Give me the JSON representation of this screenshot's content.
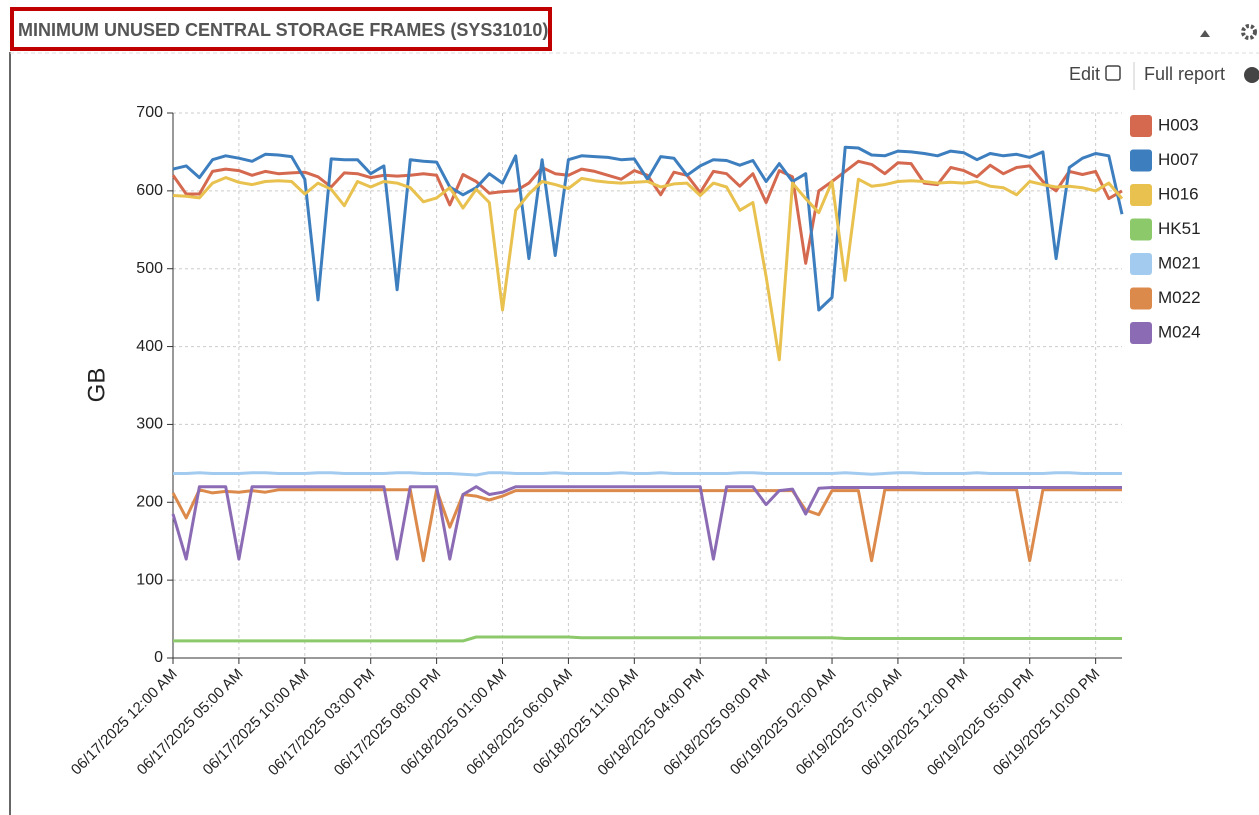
{
  "panel": {
    "title": "MINIMUM UNUSED CENTRAL STORAGE FRAMES (SYS31010)",
    "edit": "Edit",
    "full_report": "Full report"
  },
  "chart_data": {
    "type": "line",
    "ylabel": "GB",
    "ylim": [
      0,
      700
    ],
    "yticks": [
      0,
      100,
      200,
      300,
      400,
      500,
      600,
      700
    ],
    "grid": true,
    "legend": "right",
    "categories": [
      "06/17/2025 12:00 AM",
      null,
      null,
      null,
      null,
      "06/17/2025 05:00 AM",
      null,
      null,
      null,
      null,
      "06/17/2025 10:00 AM",
      null,
      null,
      null,
      null,
      "06/17/2025 03:00 PM",
      null,
      null,
      null,
      null,
      "06/17/2025 08:00 PM",
      null,
      null,
      null,
      null,
      "06/18/2025 01:00 AM",
      null,
      null,
      null,
      null,
      "06/18/2025 06:00 AM",
      null,
      null,
      null,
      null,
      "06/18/2025 11:00 AM",
      null,
      null,
      null,
      null,
      "06/18/2025 04:00 PM",
      null,
      null,
      null,
      null,
      "06/18/2025 09:00 PM",
      null,
      null,
      null,
      null,
      "06/19/2025 02:00 AM",
      null,
      null,
      null,
      null,
      "06/19/2025 07:00 AM",
      null,
      null,
      null,
      null,
      "06/19/2025 12:00 PM",
      null,
      null,
      null,
      null,
      "06/19/2025 05:00 PM",
      null,
      null,
      null,
      null,
      "06/19/2025 10:00 PM",
      null,
      null
    ],
    "series": [
      {
        "name": "H003",
        "color": "#d4694f",
        "values": [
          620,
          596,
          596,
          625,
          628,
          626,
          620,
          625,
          622,
          623,
          624,
          618,
          605,
          623,
          622,
          617,
          620,
          619,
          620,
          622,
          620,
          582,
          621,
          612,
          597,
          599,
          600,
          610,
          630,
          622,
          620,
          628,
          625,
          620,
          615,
          626,
          620,
          595,
          624,
          620,
          598,
          625,
          622,
          606,
          622,
          585,
          626,
          618,
          507,
          600,
          612,
          625,
          638,
          634,
          622,
          636,
          635,
          610,
          608,
          630,
          626,
          618,
          633,
          622,
          630,
          632,
          612,
          600,
          625,
          621,
          625,
          590,
          600
        ]
      },
      {
        "name": "H007",
        "color": "#3d7ebf",
        "values": [
          628,
          632,
          617,
          640,
          645,
          642,
          638,
          647,
          646,
          644,
          615,
          460,
          641,
          640,
          640,
          622,
          632,
          473,
          640,
          638,
          637,
          605,
          595,
          604,
          622,
          610,
          645,
          513,
          640,
          517,
          640,
          645,
          644,
          643,
          640,
          641,
          615,
          644,
          642,
          620,
          632,
          640,
          639,
          633,
          639,
          612,
          635,
          612,
          622,
          447,
          463,
          656,
          655,
          646,
          645,
          651,
          650,
          648,
          645,
          651,
          649,
          640,
          648,
          645,
          647,
          643,
          650,
          513,
          630,
          642,
          648,
          645,
          570
        ]
      },
      {
        "name": "H016",
        "color": "#e8c14f",
        "values": [
          594,
          593,
          591,
          610,
          617,
          611,
          608,
          612,
          613,
          612,
          596,
          610,
          602,
          581,
          612,
          605,
          612,
          610,
          604,
          586,
          591,
          604,
          578,
          602,
          585,
          447,
          575,
          596,
          612,
          608,
          603,
          616,
          613,
          611,
          610,
          611,
          612,
          605,
          609,
          610,
          594,
          610,
          605,
          575,
          585,
          490,
          383,
          610,
          590,
          572,
          612,
          485,
          615,
          606,
          608,
          612,
          613,
          612,
          610,
          611,
          610,
          612,
          606,
          604,
          595,
          612,
          608,
          605,
          606,
          604,
          600,
          610,
          590
        ]
      },
      {
        "name": "HK51",
        "color": "#8cc96b",
        "values": [
          22,
          22,
          22,
          22,
          22,
          22,
          22,
          22,
          22,
          22,
          22,
          22,
          22,
          22,
          22,
          22,
          22,
          22,
          22,
          22,
          22,
          22,
          22,
          27,
          27,
          27,
          27,
          27,
          27,
          27,
          27,
          26,
          26,
          26,
          26,
          26,
          26,
          26,
          26,
          26,
          26,
          26,
          26,
          26,
          26,
          26,
          26,
          26,
          26,
          26,
          26,
          25,
          25,
          25,
          25,
          25,
          25,
          25,
          25,
          25,
          25,
          25,
          25,
          25,
          25,
          25,
          25,
          25,
          25,
          25,
          25,
          25,
          25
        ]
      },
      {
        "name": "M021",
        "color": "#a3cbef",
        "values": [
          237,
          237,
          238,
          237,
          237,
          237,
          238,
          238,
          237,
          237,
          237,
          238,
          238,
          237,
          237,
          237,
          237,
          238,
          238,
          237,
          237,
          237,
          236,
          235,
          238,
          238,
          237,
          237,
          237,
          238,
          237,
          237,
          237,
          237,
          238,
          237,
          237,
          238,
          237,
          237,
          237,
          237,
          237,
          238,
          238,
          237,
          237,
          237,
          237,
          237,
          237,
          238,
          237,
          236,
          237,
          238,
          238,
          237,
          237,
          237,
          237,
          238,
          237,
          237,
          237,
          237,
          237,
          238,
          238,
          237,
          237,
          237,
          237
        ]
      },
      {
        "name": "M022",
        "color": "#dc8a4c",
        "values": [
          212,
          180,
          216,
          212,
          214,
          213,
          215,
          213,
          216,
          216,
          216,
          216,
          216,
          216,
          216,
          216,
          216,
          216,
          216,
          125,
          216,
          168,
          210,
          208,
          203,
          208,
          215,
          215,
          215,
          215,
          215,
          215,
          215,
          215,
          215,
          215,
          215,
          215,
          215,
          215,
          215,
          215,
          215,
          215,
          215,
          215,
          215,
          215,
          190,
          184,
          215,
          215,
          215,
          125,
          216,
          216,
          216,
          216,
          216,
          216,
          216,
          216,
          216,
          216,
          216,
          125,
          216,
          216,
          216,
          216,
          216,
          216,
          216
        ]
      },
      {
        "name": "M024",
        "color": "#8c6bb5",
        "values": [
          185,
          127,
          220,
          220,
          220,
          127,
          220,
          220,
          220,
          220,
          220,
          220,
          220,
          220,
          220,
          220,
          220,
          127,
          220,
          220,
          220,
          127,
          210,
          220,
          210,
          213,
          220,
          220,
          220,
          220,
          220,
          220,
          220,
          220,
          220,
          220,
          220,
          220,
          220,
          220,
          220,
          127,
          220,
          220,
          220,
          197,
          215,
          217,
          185,
          218,
          219,
          219,
          219,
          219,
          219,
          219,
          219,
          219,
          219,
          219,
          219,
          219,
          219,
          219,
          219,
          219,
          219,
          219,
          219,
          219,
          219,
          219,
          219
        ]
      }
    ]
  }
}
